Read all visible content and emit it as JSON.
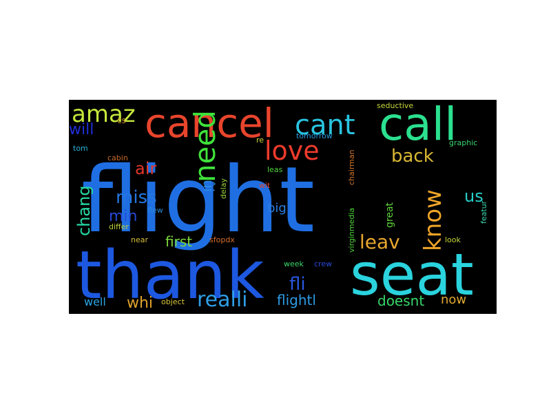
{
  "wordcloud": {
    "background": "#000000",
    "words": [
      {
        "text": "flight",
        "color": "#1f6fe3",
        "rank": 1
      },
      {
        "text": "thank",
        "color": "#1d58e0",
        "rank": 2
      },
      {
        "text": "seat",
        "color": "#2ad3dd",
        "rank": 3
      },
      {
        "text": "cancel",
        "color": "#e8452c",
        "rank": 4
      },
      {
        "text": "call",
        "color": "#2be08f",
        "rank": 5
      },
      {
        "text": "cant",
        "color": "#29c4e0",
        "rank": 6
      },
      {
        "text": "need",
        "color": "#3fe23b",
        "rank": 7
      },
      {
        "text": "love",
        "color": "#ee3b2c",
        "rank": 8
      },
      {
        "text": "amaz",
        "color": "#c5e83c",
        "rank": 9
      },
      {
        "text": "know",
        "color": "#f0a529",
        "rank": 10
      },
      {
        "text": "back",
        "color": "#d9b834",
        "rank": 11
      },
      {
        "text": "realli",
        "color": "#2f9ee6",
        "rank": 12
      },
      {
        "text": "air",
        "color": "#e2362a",
        "rank": 13
      },
      {
        "text": "miss",
        "color": "#2476e2",
        "rank": 14
      },
      {
        "text": "leav",
        "color": "#e8a62e",
        "rank": 15
      },
      {
        "text": "fli",
        "color": "#2a57e0",
        "rank": 16
      },
      {
        "text": "whi",
        "color": "#e0a22c",
        "rank": 17
      },
      {
        "text": "us",
        "color": "#27d0c9",
        "rank": 18
      },
      {
        "text": "will",
        "color": "#1f2fd6",
        "rank": 19
      },
      {
        "text": "flightl",
        "color": "#2e9be5",
        "rank": 20
      },
      {
        "text": "chang",
        "color": "#27dba5",
        "rank": 21
      },
      {
        "text": "min",
        "color": "#2749d8",
        "rank": 22
      },
      {
        "text": "first",
        "color": "#7bd83c",
        "rank": 23
      },
      {
        "text": "doesnt",
        "color": "#37d76a",
        "rank": 24
      },
      {
        "text": "well",
        "color": "#2aa6e3",
        "rank": 25
      },
      {
        "text": "now",
        "color": "#e0a931",
        "rank": 26
      },
      {
        "text": "big",
        "color": "#2a7fe0",
        "rank": 27
      },
      {
        "text": "ûi",
        "color": "#2a8de0",
        "rank": 28
      },
      {
        "text": "great",
        "color": "#5fd53a",
        "rank": 29
      },
      {
        "text": "cs",
        "color": "#c98a28",
        "rank": 30
      },
      {
        "text": "tomorrow",
        "color": "#2a9bdf",
        "rank": 31
      },
      {
        "text": "seductive",
        "color": "#c8d83a",
        "rank": 32
      },
      {
        "text": "graphic",
        "color": "#3bd56f",
        "rank": 33
      },
      {
        "text": "tom",
        "color": "#2ab2d8",
        "rank": 34
      },
      {
        "text": "cabin",
        "color": "#c96a2a",
        "rank": 35
      },
      {
        "text": "re",
        "color": "#d3d838",
        "rank": 36
      },
      {
        "text": "leas",
        "color": "#4fd43c",
        "rank": 37
      },
      {
        "text": "chairman",
        "color": "#d1752a",
        "rank": 38
      },
      {
        "text": "virginmedia",
        "color": "#4fd33a",
        "rank": 39
      },
      {
        "text": "wit",
        "color": "#e0482a",
        "rank": 40
      },
      {
        "text": "delay",
        "color": "#9ad43a",
        "rank": 41
      },
      {
        "text": "flew",
        "color": "#2a8ad8",
        "rank": 42
      },
      {
        "text": "differ",
        "color": "#bed13a",
        "rank": 43
      },
      {
        "text": "near",
        "color": "#d8c03a",
        "rank": 44
      },
      {
        "text": "sfopdx",
        "color": "#d86e2a",
        "rank": 45
      },
      {
        "text": "look",
        "color": "#c8d83a",
        "rank": 46
      },
      {
        "text": "featur",
        "color": "#3ad8b0",
        "rank": 47
      },
      {
        "text": "week",
        "color": "#3ad86a",
        "rank": 48
      },
      {
        "text": "crew",
        "color": "#2a48d8",
        "rank": 49
      },
      {
        "text": "object",
        "color": "#d8c63a",
        "rank": 50
      }
    ]
  }
}
